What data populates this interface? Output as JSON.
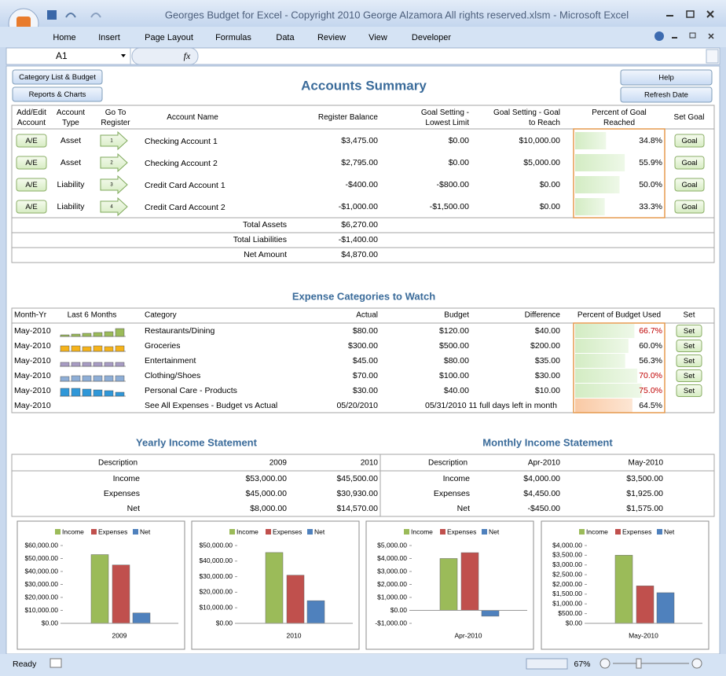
{
  "window": {
    "title": "Georges Budget for Excel - Copyright 2010  George Alzamora  All rights reserved.xlsm - Microsoft Excel"
  },
  "ribbon_tabs": [
    "Home",
    "Insert",
    "Page Layout",
    "Formulas",
    "Data",
    "Review",
    "View",
    "Developer"
  ],
  "formula_bar": {
    "name_box": "A1",
    "fx": "fx"
  },
  "buttons": {
    "category_list": "Category List & Budget",
    "reports": "Reports & Charts",
    "help": "Help",
    "refresh": "Refresh Date"
  },
  "accounts": {
    "title": "Accounts Summary",
    "headers": [
      "Add/Edit Account",
      "Account Type",
      "Go To Register",
      "Account Name",
      "Register Balance",
      "Goal Setting - Lowest Limit",
      "Goal Setting - Goal to Reach",
      "Percent of Goal Reached",
      "Set Goal"
    ],
    "rows": [
      {
        "edit": "A/E",
        "type": "Asset",
        "register": "1",
        "name": "Checking Account 1",
        "balance": "$3,475.00",
        "lowest": "$0.00",
        "goal": "$10,000.00",
        "percent": 34.8,
        "percent_label": "34.8%",
        "set": "Goal"
      },
      {
        "edit": "A/E",
        "type": "Asset",
        "register": "2",
        "name": "Checking Account 2",
        "balance": "$2,795.00",
        "lowest": "$0.00",
        "goal": "$5,000.00",
        "percent": 55.9,
        "percent_label": "55.9%",
        "set": "Goal"
      },
      {
        "edit": "A/E",
        "type": "Liability",
        "register": "3",
        "name": "Credit Card Account 1",
        "balance": "-$400.00",
        "lowest": "-$800.00",
        "goal": "$0.00",
        "percent": 50.0,
        "percent_label": "50.0%",
        "set": "Goal"
      },
      {
        "edit": "A/E",
        "type": "Liability",
        "register": "4",
        "name": "Credit Card Account 2",
        "balance": "-$1,000.00",
        "lowest": "-$1,500.00",
        "goal": "$0.00",
        "percent": 33.3,
        "percent_label": "33.3%",
        "set": "Goal"
      }
    ],
    "totals": [
      {
        "label": "Total Assets",
        "value": "$6,270.00"
      },
      {
        "label": "Total Liabilities",
        "value": "-$1,400.00"
      },
      {
        "label": "Net Amount",
        "value": "$4,870.00"
      }
    ]
  },
  "expenses": {
    "title": "Expense Categories to Watch",
    "headers": [
      "Month-Yr",
      "Last 6 Months",
      "Category",
      "Actual",
      "Budget",
      "Difference",
      "Percent of Budget Used",
      "Set"
    ],
    "rows": [
      {
        "month": "May-2010",
        "spark": [
          2,
          3,
          4,
          5,
          6,
          10
        ],
        "spark_color": "#9bbb59",
        "category": "Restaurants/Dining",
        "actual": "$80.00",
        "budget": "$120.00",
        "difference": "$40.00",
        "percent": 66.7,
        "percent_label": "66.7%",
        "percent_color": "#c00000",
        "set": "Set"
      },
      {
        "month": "May-2010",
        "spark": [
          7,
          7,
          6,
          7,
          6,
          7
        ],
        "spark_color": "#f5b31b",
        "category": "Groceries",
        "actual": "$300.00",
        "budget": "$500.00",
        "difference": "$200.00",
        "percent": 60.0,
        "percent_label": "60.0%",
        "percent_color": "#000000",
        "set": "Set"
      },
      {
        "month": "May-2010",
        "spark": [
          5,
          5,
          5,
          5,
          5,
          5
        ],
        "spark_color": "#a89cc4",
        "category": "Entertainment",
        "actual": "$45.00",
        "budget": "$80.00",
        "difference": "$35.00",
        "percent": 56.3,
        "percent_label": "56.3%",
        "percent_color": "#000000",
        "set": "Set"
      },
      {
        "month": "May-2010",
        "spark": [
          6,
          7,
          7,
          7,
          7,
          7
        ],
        "spark_color": "#8eaed6",
        "category": "Clothing/Shoes",
        "actual": "$70.00",
        "budget": "$100.00",
        "difference": "$30.00",
        "percent": 70.0,
        "percent_label": "70.0%",
        "percent_color": "#c00000",
        "set": "Set"
      },
      {
        "month": "May-2010",
        "spark": [
          10,
          10,
          9,
          8,
          7,
          5
        ],
        "spark_color": "#2f97d8",
        "category": "Personal Care - Products",
        "actual": "$30.00",
        "budget": "$40.00",
        "difference": "$10.00",
        "percent": 75.0,
        "percent_label": "75.0%",
        "percent_color": "#c00000",
        "set": "Set"
      },
      {
        "month": "May-2010",
        "category": "See All Expenses - Budget vs Actual",
        "actual": "05/20/2010",
        "budget": "05/31/2010 11 full days left in month",
        "percent": 64.5,
        "percent_label": "64.5%",
        "percent_color": "#000000"
      }
    ]
  },
  "yearly": {
    "title": "Yearly Income Statement",
    "headers": [
      "Description",
      "2009",
      "2010"
    ],
    "rows": [
      [
        "Income",
        "$53,000.00",
        "$45,500.00"
      ],
      [
        "Expenses",
        "$45,000.00",
        "$30,930.00"
      ],
      [
        "Net",
        "$8,000.00",
        "$14,570.00"
      ]
    ]
  },
  "monthly": {
    "title": "Monthly Income Statement",
    "headers": [
      "Description",
      "Apr-2010",
      "May-2010"
    ],
    "rows": [
      [
        "Income",
        "$4,000.00",
        "$3,500.00"
      ],
      [
        "Expenses",
        "$4,450.00",
        "$1,925.00"
      ],
      [
        "Net",
        "-$450.00",
        "$1,575.00"
      ]
    ]
  },
  "chart_data": [
    {
      "type": "bar",
      "categories": [
        "2009"
      ],
      "legend": "top",
      "grid": false,
      "series": [
        {
          "name": "Income",
          "color": "#9bbb59",
          "values": [
            53000
          ]
        },
        {
          "name": "Expenses",
          "color": "#c0504d",
          "values": [
            45000
          ]
        },
        {
          "name": "Net",
          "color": "#4f81bd",
          "values": [
            8000
          ]
        }
      ],
      "ylim": [
        0,
        60000
      ],
      "yticks": [
        {
          "value": 0,
          "label": "$0.00"
        },
        {
          "value": 10000,
          "label": "$10,000.00"
        },
        {
          "value": 20000,
          "label": "$20,000.00"
        },
        {
          "value": 30000,
          "label": "$30,000.00"
        },
        {
          "value": 40000,
          "label": "$40,000.00"
        },
        {
          "value": 50000,
          "label": "$50,000.00"
        },
        {
          "value": 60000,
          "label": "$60,000.00"
        }
      ]
    },
    {
      "type": "bar",
      "categories": [
        "2010"
      ],
      "legend": "top",
      "grid": false,
      "series": [
        {
          "name": "Income",
          "color": "#9bbb59",
          "values": [
            45500
          ]
        },
        {
          "name": "Expenses",
          "color": "#c0504d",
          "values": [
            30930
          ]
        },
        {
          "name": "Net",
          "color": "#4f81bd",
          "values": [
            14570
          ]
        }
      ],
      "ylim": [
        0,
        50000
      ],
      "yticks": [
        {
          "value": 0,
          "label": "$0.00"
        },
        {
          "value": 10000,
          "label": "$10,000.00"
        },
        {
          "value": 20000,
          "label": "$20,000.00"
        },
        {
          "value": 30000,
          "label": "$30,000.00"
        },
        {
          "value": 40000,
          "label": "$40,000.00"
        },
        {
          "value": 50000,
          "label": "$50,000.00"
        }
      ]
    },
    {
      "type": "bar",
      "categories": [
        "Apr-2010"
      ],
      "legend": "top",
      "grid": false,
      "series": [
        {
          "name": "Income",
          "color": "#9bbb59",
          "values": [
            4000
          ]
        },
        {
          "name": "Expenses",
          "color": "#c0504d",
          "values": [
            4450
          ]
        },
        {
          "name": "Net",
          "color": "#4f81bd",
          "values": [
            -450
          ]
        }
      ],
      "ylim": [
        -1000,
        5000
      ],
      "yticks": [
        {
          "value": -1000,
          "label": "-$1,000.00"
        },
        {
          "value": 0,
          "label": "$0.00"
        },
        {
          "value": 1000,
          "label": "$1,000.00"
        },
        {
          "value": 2000,
          "label": "$2,000.00"
        },
        {
          "value": 3000,
          "label": "$3,000.00"
        },
        {
          "value": 4000,
          "label": "$4,000.00"
        },
        {
          "value": 5000,
          "label": "$5,000.00"
        }
      ]
    },
    {
      "type": "bar",
      "categories": [
        "May-2010"
      ],
      "legend": "top",
      "grid": false,
      "series": [
        {
          "name": "Income",
          "color": "#9bbb59",
          "values": [
            3500
          ]
        },
        {
          "name": "Expenses",
          "color": "#c0504d",
          "values": [
            1925
          ]
        },
        {
          "name": "Net",
          "color": "#4f81bd",
          "values": [
            1575
          ]
        }
      ],
      "ylim": [
        0,
        4000
      ],
      "yticks": [
        {
          "value": 0,
          "label": "$0.00"
        },
        {
          "value": 500,
          "label": "$500.00"
        },
        {
          "value": 1000,
          "label": "$1,000.00"
        },
        {
          "value": 1500,
          "label": "$1,500.00"
        },
        {
          "value": 2000,
          "label": "$2,000.00"
        },
        {
          "value": 2500,
          "label": "$2,500.00"
        },
        {
          "value": 3000,
          "label": "$3,000.00"
        },
        {
          "value": 3500,
          "label": "$3,500.00"
        },
        {
          "value": 4000,
          "label": "$4,000.00"
        }
      ]
    }
  ],
  "status": {
    "ready": "Ready",
    "zoom": "67%"
  }
}
